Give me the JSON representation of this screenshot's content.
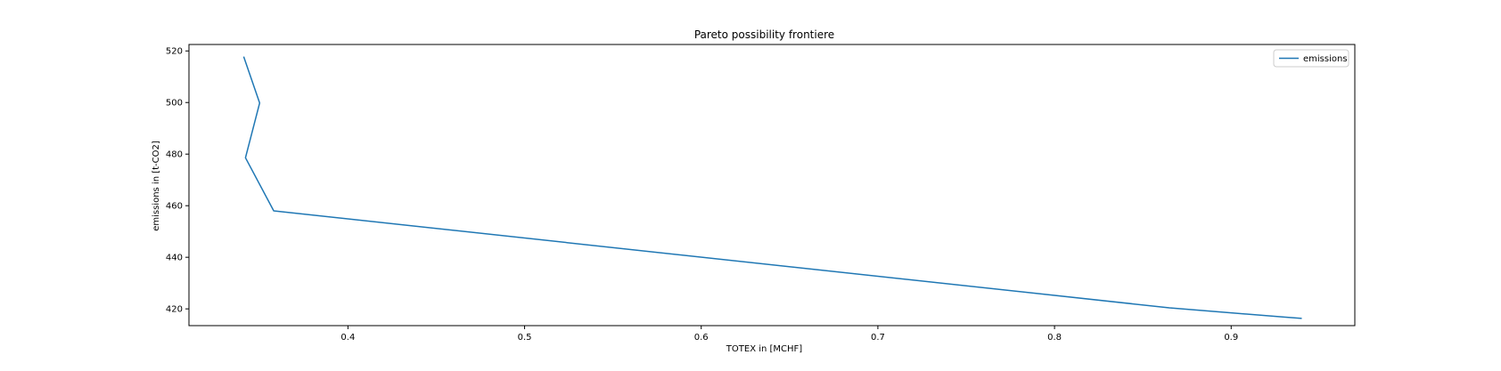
{
  "chart_data": {
    "type": "line",
    "title": "Pareto possibility frontiere",
    "xlabel": "TOTEX in [MCHF]",
    "ylabel": "emissions in [t-CO2]",
    "xlim": [
      0.31,
      0.97
    ],
    "ylim": [
      413.5,
      522.5
    ],
    "xticks": [
      0.4,
      0.5,
      0.6,
      0.7,
      0.8,
      0.9
    ],
    "xtick_labels": [
      "0.4",
      "0.5",
      "0.6",
      "0.7",
      "0.8",
      "0.9"
    ],
    "yticks": [
      420,
      440,
      460,
      480,
      500,
      520
    ],
    "ytick_labels": [
      "420",
      "440",
      "460",
      "480",
      "500",
      "520"
    ],
    "grid": false,
    "legend_position": "top-right",
    "series": [
      {
        "name": "emissions",
        "color": "#1f77b4",
        "x": [
          0.341,
          0.35,
          0.342,
          0.358,
          0.865,
          0.93,
          0.94
        ],
        "y": [
          517.8,
          499.8,
          478.6,
          458.0,
          420.4,
          416.8,
          416.3
        ]
      }
    ]
  }
}
